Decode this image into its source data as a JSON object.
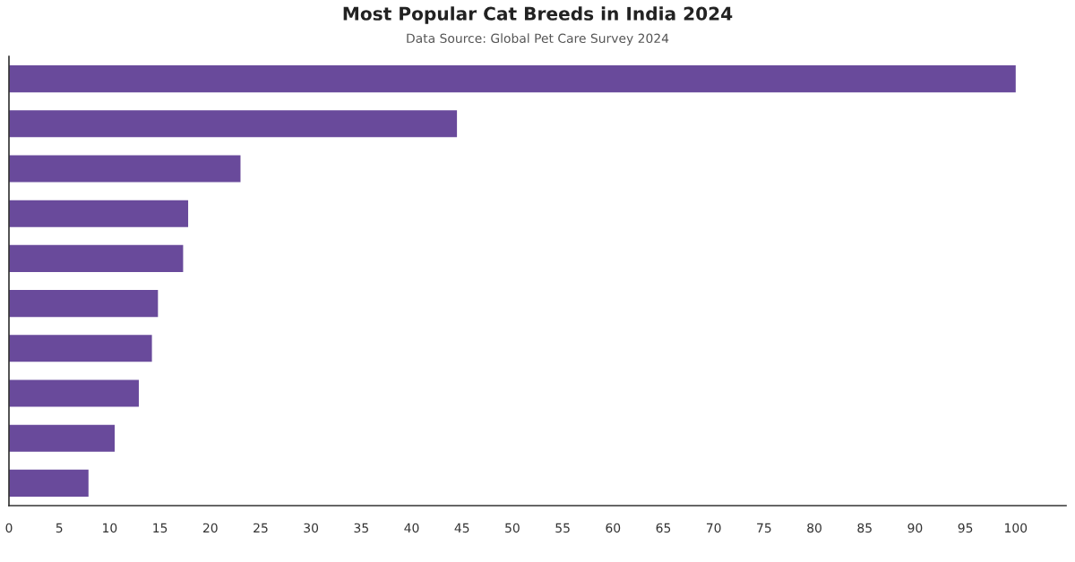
{
  "chart_data": {
    "type": "bar",
    "orientation": "horizontal",
    "title": "Most Popular Cat Breeds in India 2024",
    "subtitle": "Data Source: Global Pet Care Survey 2024",
    "categories": [
      null,
      null,
      null,
      null,
      null,
      null,
      null,
      null,
      null,
      null
    ],
    "values": [
      100,
      44.5,
      23.0,
      17.8,
      17.3,
      14.8,
      14.2,
      12.9,
      10.5,
      7.9
    ],
    "color": "#694a9b",
    "xlim": [
      0,
      105
    ],
    "xticks": [
      0,
      5,
      10,
      15,
      20,
      25,
      30,
      35,
      40,
      45,
      50,
      55,
      60,
      65,
      70,
      75,
      80,
      85,
      90,
      95,
      100
    ],
    "tick_labels": "x"
  }
}
